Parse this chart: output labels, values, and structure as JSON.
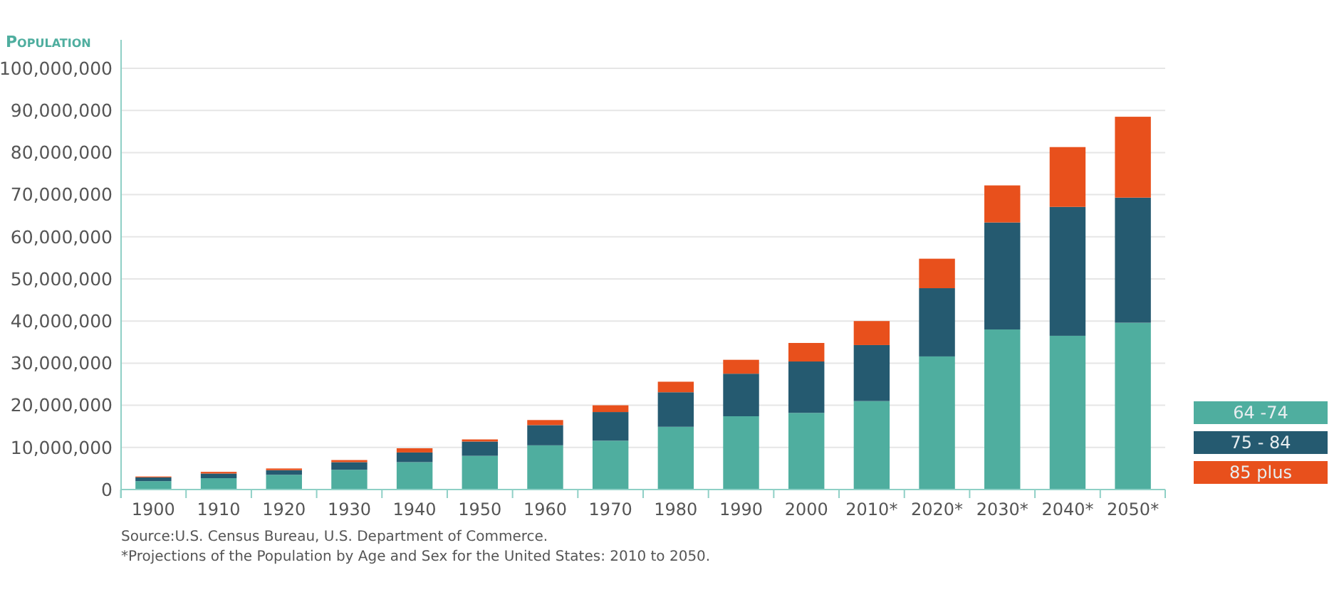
{
  "chart_data": {
    "type": "bar",
    "stacked": true,
    "ylabel": "Population",
    "categories": [
      "1900",
      "1910",
      "1920",
      "1930",
      "1940",
      "1950",
      "1960",
      "1970",
      "1980",
      "1990",
      "2000",
      "2010*",
      "2020*",
      "2030*",
      "2040*",
      "2050*"
    ],
    "series": [
      {
        "name": "64 -74",
        "color": "#4fae9f",
        "values": [
          2000000,
          2700000,
          3500000,
          4700000,
          6500000,
          8000000,
          10500000,
          11600000,
          14900000,
          17400000,
          18200000,
          21000000,
          31600000,
          38000000,
          36500000,
          39600000
        ]
      },
      {
        "name": "75 - 84",
        "color": "#255a70",
        "values": [
          900000,
          1100000,
          1100000,
          1800000,
          2300000,
          3400000,
          4800000,
          6800000,
          8200000,
          10100000,
          12200000,
          13300000,
          16200000,
          25400000,
          30600000,
          29700000
        ]
      },
      {
        "name": "85 plus",
        "color": "#e8501c",
        "values": [
          200000,
          400000,
          400000,
          500000,
          1000000,
          500000,
          1200000,
          1600000,
          2500000,
          3300000,
          4400000,
          5700000,
          7000000,
          8800000,
          14200000,
          19200000
        ]
      }
    ],
    "ylim": [
      0,
      100000000
    ],
    "yticks": [
      0,
      {
        "value": 10000000,
        "label": "10,000,000"
      },
      {
        "value": 20000000,
        "label": "20,000,000"
      },
      {
        "value": 30000000,
        "label": "30,000,000"
      },
      {
        "value": 40000000,
        "label": "40,000,000"
      },
      {
        "value": 50000000,
        "label": "50,000,000"
      },
      {
        "value": 60000000,
        "label": "60,000,000"
      },
      {
        "value": 70000000,
        "label": "70,000,000"
      },
      {
        "value": 80000000,
        "label": "80,000,000"
      },
      {
        "value": 90000000,
        "label": "90,000,000"
      },
      {
        "value": 100000000,
        "label": "100,000,000"
      }
    ],
    "grid": "y",
    "legend": "bottom right",
    "annotations": [
      "Source:U.S. Census Bureau, U.S. Department of Commerce.",
      "*Projections of the Population by Age and Sex for the United States: 2010 to 2050."
    ]
  }
}
